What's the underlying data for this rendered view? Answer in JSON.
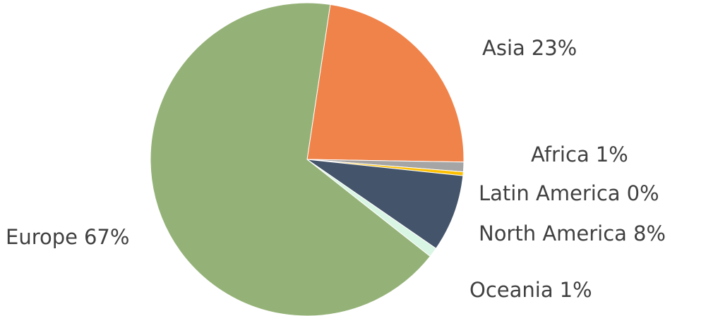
{
  "chart_data": {
    "type": "pie",
    "categories": [
      "Asia",
      "Africa",
      "Latin America",
      "North America",
      "Oceania",
      "Europe"
    ],
    "values": [
      23,
      1,
      0.4,
      8,
      1,
      67
    ],
    "value_labels": [
      "23%",
      "1%",
      "0%",
      "8%",
      "1%",
      "67%"
    ],
    "colors": [
      "#f0834a",
      "#a5a5a5",
      "#ffc000",
      "#44546a",
      "#d9f5e3",
      "#94b277"
    ]
  }
}
